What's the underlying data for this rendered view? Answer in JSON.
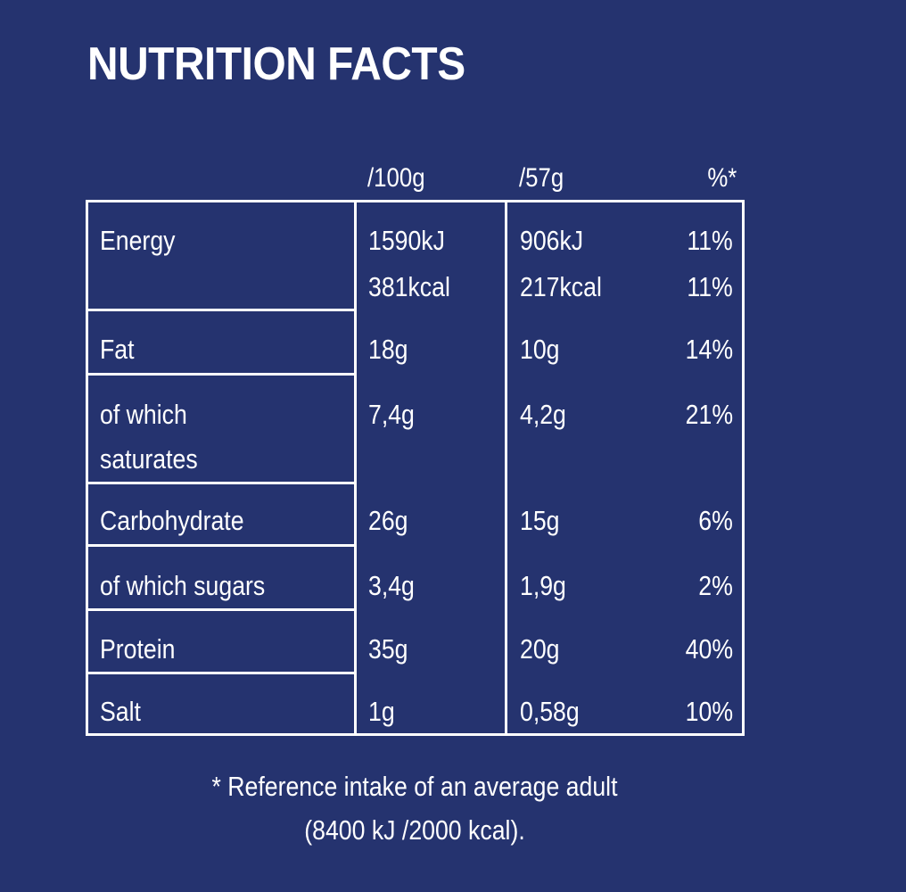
{
  "title": "NUTRITION FACTS",
  "columns": {
    "per_100g": "/100g",
    "per_serving": "/57g",
    "percent": "%*"
  },
  "rows": [
    {
      "label": "Energy",
      "per_100g": [
        "1590kJ",
        "381kcal"
      ],
      "per_serving": [
        "906kJ",
        "217kcal"
      ],
      "percent": [
        "11%",
        "11%"
      ]
    },
    {
      "label": "Fat",
      "per_100g": "18g",
      "per_serving": "10g",
      "percent": "14%"
    },
    {
      "label": [
        "of which",
        "saturates"
      ],
      "per_100g": "7,4g",
      "per_serving": "4,2g",
      "percent": "21%"
    },
    {
      "label": "Carbohydrate",
      "per_100g": "26g",
      "per_serving": "15g",
      "percent": "6%"
    },
    {
      "label": "of which sugars",
      "per_100g": "3,4g",
      "per_serving": "1,9g",
      "percent": "2%"
    },
    {
      "label": "Protein",
      "per_100g": "35g",
      "per_serving": "20g",
      "percent": "40%"
    },
    {
      "label": "Salt",
      "per_100g": "1g",
      "per_serving": "0,58g",
      "percent": "10%"
    }
  ],
  "footnote": [
    "* Reference intake of an average adult",
    "(8400 kJ /2000 kcal)."
  ],
  "colors": {
    "background": "#25336f",
    "text": "#ffffff",
    "rule": "#ffffff"
  }
}
